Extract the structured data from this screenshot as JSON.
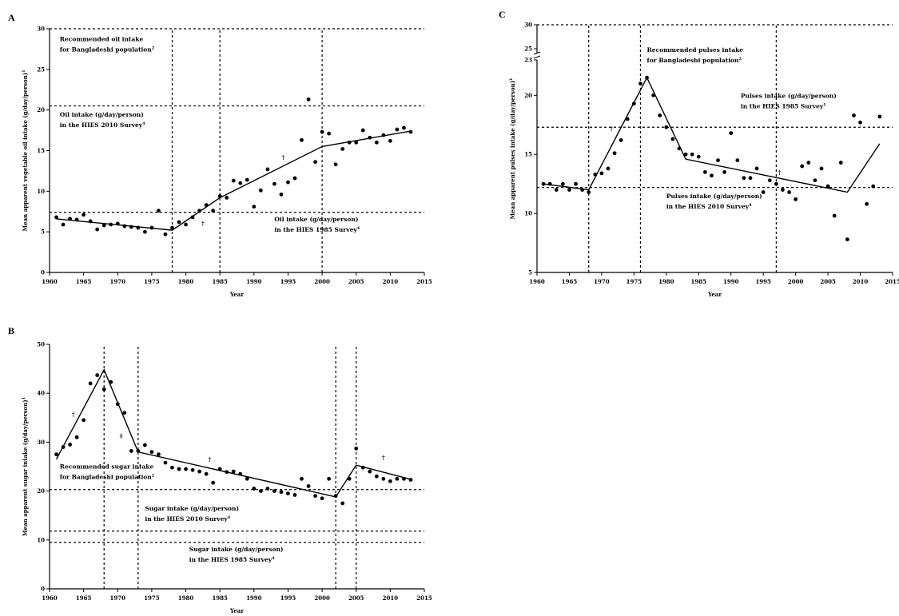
{
  "chart_data": [
    {
      "id": "A",
      "type": "scatter",
      "panel_label": "A",
      "xlabel": "Year",
      "ylabel": "Mean apparent vegetable oil intake (g/day/person)",
      "ylabel_sup": "1",
      "xlim": [
        1960,
        2015
      ],
      "ylim": [
        0,
        30
      ],
      "xticks": [
        1960,
        1965,
        1970,
        1975,
        1980,
        1985,
        1990,
        1995,
        2000,
        2005,
        2010,
        2015
      ],
      "yticks": [
        0,
        5,
        10,
        15,
        20,
        25,
        30
      ],
      "vlines": [
        1978,
        1985,
        2000
      ],
      "hlines": [
        30,
        20.5,
        7.4
      ],
      "annotations": [
        {
          "lines": [
            "Recommended oil intake",
            "for Bangladeshi population"
          ],
          "sup": "2",
          "x": 1961.5,
          "y": 28.5
        },
        {
          "lines": [
            "Oil intake (g/day/person)",
            "in the HIES 2010 Survey"
          ],
          "sup": "4",
          "x": 1961.5,
          "y": 19.2
        },
        {
          "lines": [
            "Oil intake (g/day/person)",
            "in the HIES 1985 Survey"
          ],
          "sup": "4",
          "x": 1993.0,
          "y": 6.3
        }
      ],
      "markers": [
        {
          "text": "†",
          "x": 1982.5,
          "y": 5.8
        },
        {
          "text": "†",
          "x": 1994.3,
          "y": 13.9
        }
      ],
      "points": {
        "x": [
          1961,
          1962,
          1963,
          1964,
          1965,
          1966,
          1967,
          1968,
          1969,
          1970,
          1971,
          1972,
          1973,
          1974,
          1975,
          1976,
          1977,
          1978,
          1979,
          1980,
          1981,
          1982,
          1983,
          1984,
          1985,
          1986,
          1987,
          1988,
          1989,
          1990,
          1991,
          1992,
          1993,
          1994,
          1995,
          1996,
          1997,
          1998,
          1999,
          2000,
          2001,
          2002,
          2003,
          2004,
          2005,
          2006,
          2007,
          2008,
          2009,
          2010,
          2011,
          2012,
          2013
        ],
        "y": [
          6.8,
          5.9,
          6.6,
          6.5,
          7.1,
          6.3,
          5.3,
          5.8,
          5.9,
          6.0,
          5.7,
          5.6,
          5.5,
          5.0,
          5.5,
          7.6,
          4.7,
          5.5,
          6.2,
          5.9,
          6.8,
          7.6,
          8.3,
          7.6,
          9.4,
          9.2,
          11.3,
          11.0,
          11.4,
          8.1,
          10.1,
          12.7,
          10.9,
          9.6,
          11.1,
          11.6,
          16.3,
          21.3,
          13.6,
          17.3,
          17.1,
          13.3,
          15.2,
          16.0,
          16.0,
          17.5,
          16.6,
          16.0,
          16.9,
          16.2,
          17.6,
          17.8,
          17.3
        ]
      },
      "fit": {
        "x": [
          1961,
          1978,
          1985,
          2000,
          2013
        ],
        "y": [
          6.6,
          5.2,
          9.2,
          15.5,
          17.4
        ]
      }
    },
    {
      "id": "B",
      "type": "scatter",
      "panel_label": "B",
      "xlabel": "Year",
      "ylabel": "Mean apparent sugar intake (g/day/person)",
      "ylabel_sup": "1",
      "xlim": [
        1960,
        2015
      ],
      "ylim": [
        0,
        50
      ],
      "xticks": [
        1960,
        1965,
        1970,
        1975,
        1980,
        1985,
        1990,
        1995,
        2000,
        2005,
        2010,
        2015
      ],
      "yticks": [
        0,
        10,
        20,
        30,
        40,
        50
      ],
      "vlines": [
        1968,
        1973,
        2002,
        2005
      ],
      "hlines": [
        20.3,
        11.8,
        9.5
      ],
      "annotations": [
        {
          "lines": [
            "Recommended sugar intake",
            "for Bangladeshi population"
          ],
          "sup": "2",
          "x": 1961.5,
          "y": 24.6
        },
        {
          "lines": [
            "Sugar intake (g/day/person)",
            "in the HIES 2010 Survey"
          ],
          "sup": "4",
          "x": 1974.0,
          "y": 16.0
        },
        {
          "lines": [
            "Sugar intake (g/day/person)",
            "in the HIES 1985 Survey"
          ],
          "sup": "4",
          "x": 1980.5,
          "y": 7.7
        }
      ],
      "markers": [
        {
          "text": "†",
          "x": 1963.5,
          "y": 35.3
        },
        {
          "text": "‡",
          "x": 1970.5,
          "y": 30.9
        },
        {
          "text": "†",
          "x": 1983.5,
          "y": 26.1
        },
        {
          "text": "†",
          "x": 2009.0,
          "y": 26.5
        }
      ],
      "points": {
        "x": [
          1961,
          1962,
          1963,
          1964,
          1965,
          1966,
          1967,
          1968,
          1969,
          1970,
          1971,
          1972,
          1973,
          1974,
          1975,
          1976,
          1977,
          1978,
          1979,
          1980,
          1981,
          1982,
          1983,
          1984,
          1985,
          1986,
          1987,
          1988,
          1989,
          1990,
          1991,
          1992,
          1993,
          1994,
          1995,
          1996,
          1997,
          1998,
          1999,
          2000,
          2001,
          2002,
          2003,
          2004,
          2005,
          2006,
          2007,
          2008,
          2009,
          2010,
          2011,
          2012,
          2013
        ],
        "y": [
          27.5,
          29.0,
          29.5,
          31.0,
          34.5,
          42.0,
          43.7,
          40.8,
          42.3,
          37.8,
          36.0,
          28.2,
          28.2,
          29.4,
          28.0,
          27.5,
          25.8,
          24.8,
          24.5,
          24.5,
          24.3,
          24.0,
          23.5,
          21.7,
          24.5,
          23.9,
          24.0,
          23.5,
          22.5,
          20.5,
          20.0,
          20.5,
          20.0,
          19.8,
          19.5,
          19.2,
          22.5,
          21.0,
          19.0,
          18.5,
          22.5,
          19.0,
          17.5,
          22.5,
          28.7,
          24.8,
          24.0,
          23.0,
          22.5,
          22.0,
          22.5,
          22.5,
          22.3
        ]
      },
      "fit": {
        "x": [
          1961,
          1968,
          1973,
          2002,
          2005,
          2013
        ],
        "y": [
          26.5,
          44.8,
          28.0,
          18.8,
          25.3,
          22.4
        ]
      }
    },
    {
      "id": "C",
      "type": "scatter",
      "panel_label": "C",
      "xlabel": "Year",
      "ylabel": "Mean apparent pulses intake (g/day/person)",
      "ylabel_sup": "1",
      "xlim": [
        1960,
        2015
      ],
      "ylim": [
        5,
        23
      ],
      "ybreak_ticks": [
        25,
        30
      ],
      "xticks": [
        1960,
        1965,
        1970,
        1975,
        1980,
        1985,
        1990,
        1995,
        2000,
        2005,
        2010,
        2015
      ],
      "yticks": [
        5,
        10,
        15,
        20,
        23
      ],
      "vlines": [
        1968,
        1976,
        1997
      ],
      "hlines": [
        30,
        17.3,
        12.2
      ],
      "annotations": [
        {
          "lines": [
            "Recommended pulses intake",
            "for Bangladeshi population"
          ],
          "sup": "2",
          "x": 1977.0,
          "y": 24.3
        },
        {
          "lines": [
            "Pulses intake (g/day/person)",
            "in the HIES 1985 Survey"
          ],
          "sup": "1",
          "x": 1991.5,
          "y": 19.8
        },
        {
          "lines": [
            "Pulses intake (g/day/person)",
            "in the HIES 2010 Survey"
          ],
          "sup": "4",
          "x": 1980.0,
          "y": 11.3
        }
      ],
      "markers": [
        {
          "text": "†",
          "x": 1971.5,
          "y": 17.0
        },
        {
          "text": "†",
          "x": 1997.5,
          "y": 13.3
        }
      ],
      "points": {
        "x": [
          1961,
          1962,
          1963,
          1964,
          1965,
          1966,
          1967,
          1968,
          1969,
          1970,
          1971,
          1972,
          1973,
          1974,
          1975,
          1976,
          1977,
          1978,
          1979,
          1980,
          1981,
          1982,
          1983,
          1984,
          1985,
          1986,
          1987,
          1988,
          1989,
          1990,
          1991,
          1992,
          1993,
          1994,
          1995,
          1996,
          1997,
          1998,
          1999,
          2000,
          2001,
          2002,
          2003,
          2004,
          2005,
          2006,
          2007,
          2008,
          2009,
          2010,
          2011,
          2012,
          2013
        ],
        "y": [
          12.5,
          12.5,
          12.0,
          12.5,
          12.0,
          12.5,
          12.0,
          11.8,
          13.3,
          13.4,
          13.8,
          15.1,
          16.2,
          18.0,
          19.3,
          21.0,
          21.5,
          20.0,
          18.3,
          17.3,
          16.3,
          15.5,
          15.0,
          15.0,
          14.8,
          13.5,
          13.2,
          14.5,
          13.5,
          16.8,
          14.5,
          13.0,
          13.0,
          13.8,
          11.8,
          12.8,
          12.5,
          12.0,
          11.8,
          11.2,
          14.0,
          14.3,
          12.8,
          13.8,
          12.3,
          9.8,
          14.3,
          7.8,
          18.3,
          17.7,
          10.8,
          12.3,
          18.2
        ]
      },
      "fit": {
        "x": [
          1961,
          1968,
          1977,
          1983,
          2008,
          2013
        ],
        "y": [
          12.5,
          12.0,
          21.5,
          14.6,
          11.8,
          15.9
        ]
      }
    }
  ]
}
